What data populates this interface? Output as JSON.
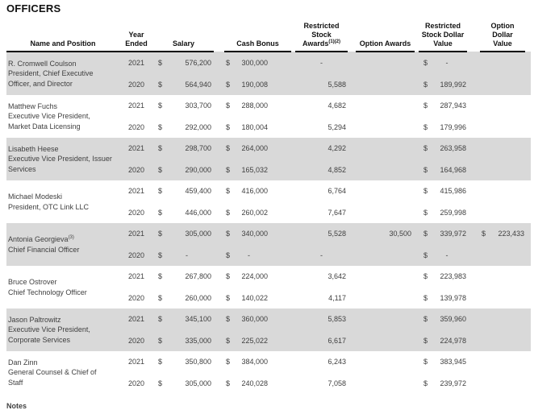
{
  "page_title": "OFFICERS",
  "notes_heading": "Notes",
  "table": {
    "currency_symbol": "$",
    "header": {
      "name_position": "Name and Position",
      "year": "Year\nEnded",
      "salary": "Salary",
      "cash_bonus": "Cash Bonus",
      "restricted_stock_awards": "Restricted\nStock\nAwards",
      "restricted_stock_awards_sup": "(1)(2)",
      "option_awards": "Option Awards",
      "restricted_stock_dollar_value": "Restricted\nStock Dollar\nValue",
      "option_dollar_value": "Option\nDollar\nValue"
    },
    "officers": [
      {
        "name": "R. Cromwell Coulson",
        "name_sup": "",
        "position": "President, Chief Executive Officer, and Director",
        "shaded": true,
        "rows": [
          {
            "year": "2021",
            "salary": "576,200",
            "cash_bonus": "300,000",
            "restricted_stock_awards": "-",
            "option_awards": "",
            "restricted_stock_dollar_value": "-",
            "option_dollar_value": ""
          },
          {
            "year": "2020",
            "salary": "564,940",
            "cash_bonus": "190,008",
            "restricted_stock_awards": "5,588",
            "option_awards": "",
            "restricted_stock_dollar_value": "189,992",
            "option_dollar_value": ""
          }
        ]
      },
      {
        "name": "Matthew Fuchs",
        "name_sup": "",
        "position": "Executive Vice President, Market Data Licensing",
        "shaded": false,
        "rows": [
          {
            "year": "2021",
            "salary": "303,700",
            "cash_bonus": "288,000",
            "restricted_stock_awards": "4,682",
            "option_awards": "",
            "restricted_stock_dollar_value": "287,943",
            "option_dollar_value": ""
          },
          {
            "year": "2020",
            "salary": "292,000",
            "cash_bonus": "180,004",
            "restricted_stock_awards": "5,294",
            "option_awards": "",
            "restricted_stock_dollar_value": "179,996",
            "option_dollar_value": ""
          }
        ]
      },
      {
        "name": "Lisabeth Heese",
        "name_sup": "",
        "position": "Executive Vice President, Issuer Services",
        "shaded": true,
        "rows": [
          {
            "year": "2021",
            "salary": "298,700",
            "cash_bonus": "264,000",
            "restricted_stock_awards": "4,292",
            "option_awards": "",
            "restricted_stock_dollar_value": "263,958",
            "option_dollar_value": ""
          },
          {
            "year": "2020",
            "salary": "290,000",
            "cash_bonus": "165,032",
            "restricted_stock_awards": "4,852",
            "option_awards": "",
            "restricted_stock_dollar_value": "164,968",
            "option_dollar_value": ""
          }
        ]
      },
      {
        "name": "Michael Modeski",
        "name_sup": "",
        "position": "President, OTC Link LLC",
        "shaded": false,
        "rows": [
          {
            "year": "2021",
            "salary": "459,400",
            "cash_bonus": "416,000",
            "restricted_stock_awards": "6,764",
            "option_awards": "",
            "restricted_stock_dollar_value": "415,986",
            "option_dollar_value": ""
          },
          {
            "year": "2020",
            "salary": "446,000",
            "cash_bonus": "260,002",
            "restricted_stock_awards": "7,647",
            "option_awards": "",
            "restricted_stock_dollar_value": "259,998",
            "option_dollar_value": ""
          }
        ]
      },
      {
        "name": "Antonia Georgieva",
        "name_sup": "(3)",
        "position": "Chief Financial Officer",
        "shaded": true,
        "rows": [
          {
            "year": "2021",
            "salary": "305,000",
            "cash_bonus": "340,000",
            "restricted_stock_awards": "5,528",
            "option_awards": "30,500",
            "restricted_stock_dollar_value": "339,972",
            "option_dollar_value": "223,433"
          },
          {
            "year": "2020",
            "salary": "-",
            "cash_bonus": "-",
            "restricted_stock_awards": "-",
            "option_awards": "",
            "restricted_stock_dollar_value": "-",
            "option_dollar_value": ""
          }
        ]
      },
      {
        "name": "Bruce Ostrover",
        "name_sup": "",
        "position": "Chief Technology Officer",
        "shaded": false,
        "rows": [
          {
            "year": "2021",
            "salary": "267,800",
            "cash_bonus": "224,000",
            "restricted_stock_awards": "3,642",
            "option_awards": "",
            "restricted_stock_dollar_value": "223,983",
            "option_dollar_value": ""
          },
          {
            "year": "2020",
            "salary": "260,000",
            "cash_bonus": "140,022",
            "restricted_stock_awards": "4,117",
            "option_awards": "",
            "restricted_stock_dollar_value": "139,978",
            "option_dollar_value": ""
          }
        ]
      },
      {
        "name": "Jason Paltrowitz",
        "name_sup": "",
        "position": "Executive Vice President, Corporate Services",
        "shaded": true,
        "rows": [
          {
            "year": "2021",
            "salary": "345,100",
            "cash_bonus": "360,000",
            "restricted_stock_awards": "5,853",
            "option_awards": "",
            "restricted_stock_dollar_value": "359,960",
            "option_dollar_value": ""
          },
          {
            "year": "2020",
            "salary": "335,000",
            "cash_bonus": "225,022",
            "restricted_stock_awards": "6,617",
            "option_awards": "",
            "restricted_stock_dollar_value": "224,978",
            "option_dollar_value": ""
          }
        ]
      },
      {
        "name": "Dan Zinn",
        "name_sup": "",
        "position": "General Counsel & Chief of Staff",
        "shaded": false,
        "rows": [
          {
            "year": "2021",
            "salary": "350,800",
            "cash_bonus": "384,000",
            "restricted_stock_awards": "6,243",
            "option_awards": "",
            "restricted_stock_dollar_value": "383,945",
            "option_dollar_value": ""
          },
          {
            "year": "2020",
            "salary": "305,000",
            "cash_bonus": "240,028",
            "restricted_stock_awards": "7,058",
            "option_awards": "",
            "restricted_stock_dollar_value": "239,972",
            "option_dollar_value": ""
          }
        ]
      }
    ]
  }
}
